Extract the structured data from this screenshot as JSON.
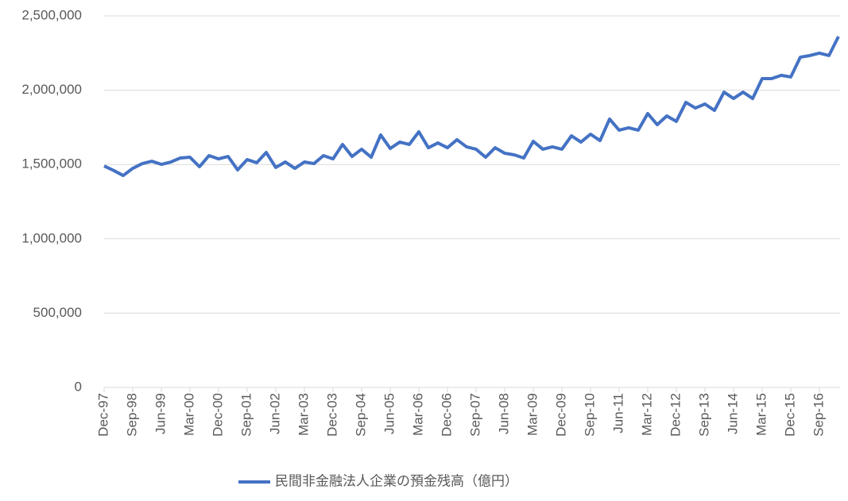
{
  "chart_data": {
    "type": "line",
    "categories": [
      "Dec-97",
      null,
      null,
      "Sep-98",
      null,
      null,
      "Jun-99",
      null,
      null,
      "Mar-00",
      null,
      null,
      "Dec-00",
      null,
      null,
      "Sep-01",
      null,
      null,
      "Jun-02",
      null,
      null,
      "Mar-03",
      null,
      null,
      "Dec-03",
      null,
      null,
      "Sep-04",
      null,
      null,
      "Jun-05",
      null,
      null,
      "Mar-06",
      null,
      null,
      "Dec-06",
      null,
      null,
      "Sep-07",
      null,
      null,
      "Jun-08",
      null,
      null,
      "Mar-09",
      null,
      null,
      "Dec-09",
      null,
      null,
      "Sep-10",
      null,
      null,
      "Jun-11",
      null,
      null,
      "Mar-12",
      null,
      null,
      "Dec-12",
      null,
      null,
      "Sep-13",
      null,
      null,
      "Jun-14",
      null,
      null,
      "Mar-15",
      null,
      null,
      "Dec-15",
      null,
      null,
      "Sep-16",
      null,
      null
    ],
    "series": [
      {
        "name": "民間非金融法人企業の預金残高（億円）",
        "color": "#4472c4",
        "values": [
          1490000,
          1460000,
          1426000,
          1474000,
          1506000,
          1522000,
          1501000,
          1517000,
          1544000,
          1549000,
          1485000,
          1560000,
          1538000,
          1554000,
          1464000,
          1533000,
          1512000,
          1581000,
          1480000,
          1517000,
          1474000,
          1517000,
          1506000,
          1560000,
          1538000,
          1635000,
          1554000,
          1603000,
          1549000,
          1699000,
          1608000,
          1651000,
          1635000,
          1720000,
          1613000,
          1645000,
          1613000,
          1667000,
          1619000,
          1603000,
          1549000,
          1613000,
          1576000,
          1565000,
          1544000,
          1656000,
          1603000,
          1619000,
          1603000,
          1693000,
          1651000,
          1704000,
          1661000,
          1806000,
          1731000,
          1747000,
          1731000,
          1843000,
          1768000,
          1827000,
          1790000,
          1918000,
          1880000,
          1907000,
          1864000,
          1987000,
          1944000,
          1987000,
          1944000,
          2078000,
          2078000,
          2100000,
          2089000,
          2222000,
          2233000,
          2249000,
          2233000,
          2361000
        ]
      }
    ],
    "ylim": [
      0,
      2500000
    ],
    "yticks": [
      0,
      {
        "value": 500000,
        "label": "500,000"
      },
      {
        "value": 1000000,
        "label": "1,000,000"
      },
      {
        "value": 1500000,
        "label": "1,500,000"
      },
      {
        "value": 2000000,
        "label": "2,000,000"
      },
      {
        "value": 2500000,
        "label": "2,500,000"
      }
    ],
    "grid": true,
    "legend": "bottom"
  }
}
